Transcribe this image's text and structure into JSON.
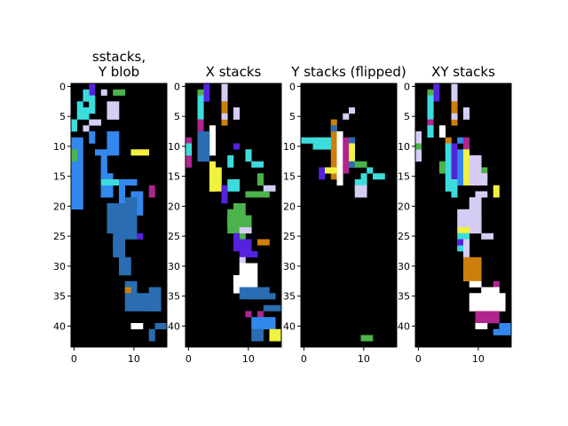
{
  "chart_data": {
    "type": "heatmap",
    "cell_size": 1,
    "panels": [
      {
        "title_lines": [
          "sstacks,",
          "Y blob"
        ],
        "x_ticks": [
          0,
          10
        ],
        "y_ticks": [
          0,
          5,
          10,
          15,
          20,
          25,
          30,
          35,
          40
        ],
        "grid_shape": [
          44,
          16
        ],
        "background": "#000000",
        "rects": [
          [
            0,
            3,
            4,
            1,
            "#5522dd"
          ],
          [
            1,
            2,
            2,
            1,
            "#3ddcdc"
          ],
          [
            1,
            5,
            1,
            1,
            "#d6cdf4"
          ],
          [
            1,
            7,
            1,
            2,
            "#4cb34c"
          ],
          [
            2,
            3,
            3,
            1,
            "#3ddcdc"
          ],
          [
            3,
            1,
            2,
            1,
            "#3ddcdc"
          ],
          [
            3,
            6,
            3,
            2,
            "#d6cdf4"
          ],
          [
            4,
            2,
            2,
            1,
            "#3ddcdc"
          ],
          [
            5,
            1,
            1,
            1,
            "#3ddcdc"
          ],
          [
            6,
            0,
            2,
            1,
            "#3ddcdc"
          ],
          [
            6,
            3,
            1,
            2,
            "#d6cdf4"
          ],
          [
            7,
            2,
            1,
            1,
            "#d6cdf4"
          ],
          [
            8,
            3,
            2,
            1,
            "#3388ee"
          ],
          [
            8,
            6,
            4,
            2,
            "#3388ee"
          ],
          [
            9,
            0,
            12,
            2,
            "#3388ee"
          ],
          [
            11,
            0,
            2,
            1,
            "#4cb34c"
          ],
          [
            11,
            10,
            1,
            3,
            "#f1f140"
          ],
          [
            11,
            4,
            1,
            3,
            "#3388ee"
          ],
          [
            12,
            5,
            4,
            1,
            "#3388ee"
          ],
          [
            13,
            5,
            6,
            1,
            "#3388ee"
          ],
          [
            14,
            5,
            5,
            1,
            "#3388ee"
          ],
          [
            15,
            6,
            4,
            1,
            "#3388ee"
          ],
          [
            16,
            5,
            1,
            3,
            "#3ddcdc"
          ],
          [
            16,
            8,
            1,
            3,
            "#3388ee"
          ],
          [
            17,
            8,
            4,
            1,
            "#3388ee"
          ],
          [
            17,
            13,
            2,
            1,
            "#b0258e"
          ],
          [
            18,
            10,
            4,
            2,
            "#3388ee"
          ],
          [
            19,
            9,
            7,
            2,
            "#2a6db2"
          ],
          [
            20,
            6,
            5,
            4,
            "#2a6db2"
          ],
          [
            24,
            7,
            4,
            2,
            "#2a6db2"
          ],
          [
            25,
            11,
            1,
            1,
            "#5522dd"
          ],
          [
            26,
            7,
            3,
            2,
            "#2a6db2"
          ],
          [
            28,
            8,
            2,
            1,
            "#2a6db2"
          ],
          [
            29,
            8,
            3,
            2,
            "#2a6db2"
          ],
          [
            33,
            9,
            2,
            2,
            "#2a6db2"
          ],
          [
            34,
            9,
            1,
            1,
            "#cc7f0a"
          ],
          [
            34,
            13,
            4,
            2,
            "#2a6db2"
          ],
          [
            35,
            9,
            3,
            5,
            "#2a6db2"
          ],
          [
            37,
            12,
            1,
            3,
            "#2a6db2"
          ],
          [
            40,
            10,
            1,
            2,
            "#ffffff"
          ],
          [
            40,
            14,
            1,
            2,
            "#2a6db2"
          ],
          [
            41,
            13,
            2,
            1,
            "#2a6db2"
          ]
        ]
      },
      {
        "title_lines": [
          "X stacks"
        ],
        "x_ticks": [
          0,
          10
        ],
        "y_ticks": [
          0,
          5,
          10,
          15,
          20,
          25,
          30,
          35,
          40
        ],
        "grid_shape": [
          44,
          16
        ],
        "background": "#000000",
        "rects": [
          [
            0,
            3,
            3,
            1,
            "#5522dd"
          ],
          [
            0,
            6,
            3,
            1,
            "#d6cdf4"
          ],
          [
            1,
            2,
            5,
            1,
            "#4cb34c"
          ],
          [
            2,
            2,
            3,
            1,
            "#3ddcdc"
          ],
          [
            3,
            6,
            4,
            1,
            "#cc7f0a"
          ],
          [
            4,
            2,
            2,
            1,
            "#3ddcdc"
          ],
          [
            4,
            8,
            2,
            1,
            "#d6cdf4"
          ],
          [
            5,
            6,
            1,
            1,
            "#d6cdf4"
          ],
          [
            6,
            2,
            2,
            1,
            "#b0258e"
          ],
          [
            7,
            4,
            5,
            1,
            "#ffffff"
          ],
          [
            8,
            2,
            5,
            2,
            "#2a6db2"
          ],
          [
            9,
            0,
            5,
            1,
            "#b0258e"
          ],
          [
            10,
            0,
            2,
            1,
            "#3ddcdc"
          ],
          [
            10,
            8,
            1,
            1,
            "#5522dd"
          ],
          [
            11,
            10,
            2,
            1,
            "#3ddcdc"
          ],
          [
            12,
            7,
            2,
            1,
            "#3ddcdc"
          ],
          [
            13,
            4,
            5,
            1,
            "#f1f140"
          ],
          [
            13,
            11,
            1,
            2,
            "#3ddcdc"
          ],
          [
            14,
            4,
            4,
            2,
            "#f1f140"
          ],
          [
            15,
            12,
            2,
            1,
            "#4cb34c"
          ],
          [
            16,
            7,
            2,
            2,
            "#3ddcdc"
          ],
          [
            17,
            6,
            3,
            1,
            "#5522dd"
          ],
          [
            17,
            13,
            1,
            2,
            "#d6cdf4"
          ],
          [
            18,
            10,
            1,
            4,
            "#4cb34c"
          ],
          [
            20,
            8,
            7,
            2,
            "#4cb34c"
          ],
          [
            21,
            7,
            3,
            1,
            "#4cb34c"
          ],
          [
            22,
            7,
            3,
            4,
            "#4cb34c"
          ],
          [
            24,
            9,
            1,
            2,
            "#d6cdf4"
          ],
          [
            25,
            8,
            2,
            1,
            "#5522dd"
          ],
          [
            26,
            8,
            2,
            3,
            "#5522dd"
          ],
          [
            26,
            12,
            1,
            2,
            "#cc7f0a"
          ],
          [
            27,
            9,
            1,
            2,
            "#5522dd"
          ],
          [
            28,
            9,
            1,
            3,
            "#5522dd"
          ],
          [
            29,
            9,
            1,
            1,
            "#d6cdf4"
          ],
          [
            30,
            9,
            2,
            3,
            "#ffffff"
          ],
          [
            32,
            8,
            3,
            4,
            "#ffffff"
          ],
          [
            34,
            9,
            2,
            5,
            "#2a6db2"
          ],
          [
            35,
            10,
            1,
            5,
            "#2a6db2"
          ],
          [
            37,
            13,
            1,
            3,
            "#2a6db2"
          ],
          [
            38,
            10,
            1,
            1,
            "#b0258e"
          ],
          [
            38,
            12,
            1,
            1,
            "#b0258e"
          ],
          [
            39,
            11,
            2,
            4,
            "#3388ee"
          ],
          [
            41,
            11,
            2,
            2,
            "#2a6db2"
          ],
          [
            41,
            14,
            2,
            2,
            "#f1f140"
          ]
        ]
      },
      {
        "title_lines": [
          "Y stacks (flipped)"
        ],
        "x_ticks": [
          0,
          10
        ],
        "y_ticks": [
          0,
          5,
          10,
          15,
          20,
          25,
          30,
          35,
          40
        ],
        "grid_shape": [
          44,
          16
        ],
        "background": "#000000",
        "rects": [
          [
            4,
            8,
            1,
            1,
            "#d6cdf4"
          ],
          [
            5,
            7,
            1,
            1,
            "#d6cdf4"
          ],
          [
            6,
            5,
            10,
            1,
            "#cc7f0a"
          ],
          [
            7,
            5,
            1,
            1,
            "#2a6db2"
          ],
          [
            8,
            6,
            9,
            1,
            "#ffffff"
          ],
          [
            9,
            0,
            1,
            5,
            "#3ddcdc"
          ],
          [
            9,
            7,
            6,
            1,
            "#b0258e"
          ],
          [
            9,
            8,
            1,
            1,
            "#2a6db2"
          ],
          [
            10,
            2,
            1,
            3,
            "#3ddcdc"
          ],
          [
            10,
            8,
            4,
            1,
            "#f1f140"
          ],
          [
            13,
            8,
            1,
            2,
            "#2a6db2"
          ],
          [
            13,
            9,
            1,
            2,
            "#4cb34c"
          ],
          [
            14,
            3,
            2,
            1,
            "#5522dd"
          ],
          [
            14,
            4,
            1,
            2,
            "#f1f140"
          ],
          [
            14,
            11,
            1,
            1,
            "#3ddcdc"
          ],
          [
            15,
            10,
            2,
            1,
            "#3ddcdc"
          ],
          [
            15,
            12,
            1,
            2,
            "#3ddcdc"
          ],
          [
            16,
            9,
            2,
            2,
            "#3ddcdc"
          ],
          [
            17,
            9,
            2,
            2,
            "#d6cdf4"
          ],
          [
            42,
            10,
            1,
            2,
            "#4cb34c"
          ]
        ]
      },
      {
        "title_lines": [
          "XY stacks"
        ],
        "x_ticks": [
          0,
          10
        ],
        "y_ticks": [
          0,
          5,
          10,
          15,
          20,
          25,
          30,
          35,
          40
        ],
        "grid_shape": [
          44,
          16
        ],
        "background": "#000000",
        "rects": [
          [
            0,
            3,
            3,
            1,
            "#5522dd"
          ],
          [
            0,
            6,
            3,
            1,
            "#d6cdf4"
          ],
          [
            1,
            2,
            5,
            1,
            "#4cb34c"
          ],
          [
            2,
            2,
            3,
            1,
            "#3ddcdc"
          ],
          [
            3,
            6,
            4,
            1,
            "#cc7f0a"
          ],
          [
            4,
            2,
            2,
            1,
            "#3ddcdc"
          ],
          [
            4,
            8,
            2,
            1,
            "#d6cdf4"
          ],
          [
            5,
            6,
            1,
            1,
            "#d6cdf4"
          ],
          [
            6,
            2,
            2,
            1,
            "#b0258e"
          ],
          [
            7,
            4,
            2,
            1,
            "#ffffff"
          ],
          [
            7,
            2,
            2,
            1,
            "#3ddcdc"
          ],
          [
            8,
            0,
            5,
            1,
            "#d6cdf4"
          ],
          [
            9,
            5,
            2,
            1,
            "#cc7f0a"
          ],
          [
            9,
            7,
            1,
            1,
            "#3388ee"
          ],
          [
            9,
            8,
            2,
            1,
            "#b0258e"
          ],
          [
            10,
            0,
            1,
            1,
            "#4cb34c"
          ],
          [
            10,
            5,
            8,
            1,
            "#3ddcdc"
          ],
          [
            10,
            6,
            6,
            1,
            "#5522dd"
          ],
          [
            11,
            7,
            6,
            1,
            "#3388ee"
          ],
          [
            11,
            8,
            6,
            1,
            "#f1f140"
          ],
          [
            12,
            9,
            4,
            2,
            "#d6cdf4"
          ],
          [
            13,
            4,
            2,
            1,
            "#4cb34c"
          ],
          [
            14,
            11,
            2,
            1,
            "#4cb34c"
          ],
          [
            15,
            9,
            2,
            3,
            "#d6cdf4"
          ],
          [
            16,
            6,
            3,
            1,
            "#3ddcdc"
          ],
          [
            17,
            13,
            2,
            1,
            "#f1f140"
          ],
          [
            18,
            10,
            1,
            2,
            "#d6cdf4"
          ],
          [
            19,
            9,
            6,
            2,
            "#d6cdf4"
          ],
          [
            21,
            7,
            3,
            2,
            "#d6cdf4"
          ],
          [
            22,
            8,
            3,
            3,
            "#d6cdf4"
          ],
          [
            24,
            7,
            1,
            2,
            "#f1f140"
          ],
          [
            25,
            7,
            3,
            2,
            "#3ddcdc"
          ],
          [
            25,
            11,
            1,
            2,
            "#d6cdf4"
          ],
          [
            26,
            7,
            1,
            1,
            "#5522dd"
          ],
          [
            26,
            8,
            3,
            1,
            "#d6cdf4"
          ],
          [
            29,
            8,
            4,
            3,
            "#cc7f0a"
          ],
          [
            32,
            9,
            1,
            1,
            "#cc7f0a"
          ],
          [
            33,
            9,
            1,
            2,
            "#ffffff"
          ],
          [
            33,
            13,
            1,
            1,
            "#b0258e"
          ],
          [
            34,
            11,
            3,
            3,
            "#ffffff"
          ],
          [
            35,
            9,
            3,
            6,
            "#ffffff"
          ],
          [
            38,
            10,
            2,
            4,
            "#b0258e"
          ],
          [
            40,
            10,
            1,
            2,
            "#ffffff"
          ],
          [
            40,
            14,
            2,
            2,
            "#3388ee"
          ],
          [
            41,
            13,
            1,
            1,
            "#3388ee"
          ]
        ]
      }
    ]
  }
}
